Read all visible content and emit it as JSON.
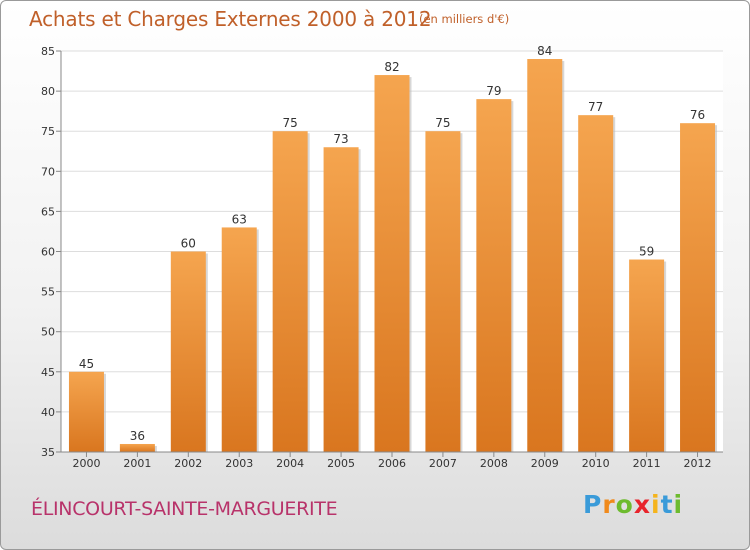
{
  "header": {
    "title": "Achats et Charges Externes 2000 à 2012",
    "unit": "(en milliers d'€)"
  },
  "footer": {
    "commune": "ÉLINCOURT-SAINTE-MARGUERITE",
    "logo": [
      "P",
      "r",
      "o",
      "x",
      "i",
      "t",
      "i"
    ]
  },
  "colors": {
    "title": "#c0602a",
    "commune": "#b8336a",
    "bar_light": "#f5a54f",
    "bar_dark": "#d9761f",
    "logo": [
      "#3a9bd9",
      "#f08a1c",
      "#6dbb2e",
      "#e8242c",
      "#f5b41c",
      "#3a9bd9",
      "#6dbb2e"
    ]
  },
  "chart_data": {
    "type": "bar",
    "title": "Achats et Charges Externes 2000 à 2012",
    "categories": [
      "2000",
      "2001",
      "2002",
      "2003",
      "2004",
      "2005",
      "2006",
      "2007",
      "2008",
      "2009",
      "2010",
      "2011",
      "2012"
    ],
    "values": [
      45,
      36,
      60,
      63,
      75,
      73,
      82,
      75,
      79,
      84,
      77,
      59,
      76
    ],
    "ylim": [
      35,
      85
    ],
    "yticks": [
      35,
      40,
      45,
      50,
      55,
      60,
      65,
      70,
      75,
      80,
      85
    ],
    "grid": true,
    "data_labels": true
  }
}
